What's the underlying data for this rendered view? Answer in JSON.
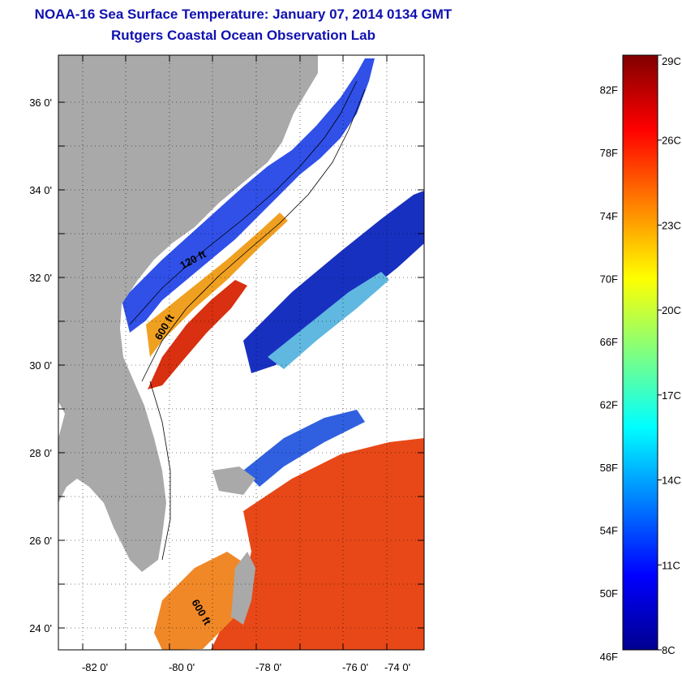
{
  "header": {
    "title": "NOAA-16 Sea Surface Temperature:  January 07, 2014 0134 GMT",
    "subtitle": "Rutgers Coastal Ocean Observation Lab"
  },
  "map": {
    "lon_ticks": [
      "-82 0'",
      "-80 0'",
      "-78 0'",
      "-76 0'",
      "-74 0'"
    ],
    "lat_ticks": [
      "36 0'",
      "34 0'",
      "32 0'",
      "30 0'",
      "28 0'",
      "26 0'",
      "24 0'"
    ],
    "contour_labels": [
      "120 ft",
      "600 ft",
      "600 ft"
    ],
    "land_color": "#a9a9a9",
    "gridlines": "dotted"
  },
  "colorbar": {
    "f_labels": [
      "82F",
      "78F",
      "74F",
      "70F",
      "66F",
      "62F",
      "58F",
      "54F",
      "50F",
      "46F"
    ],
    "c_labels": [
      "29C",
      "26C",
      "23C",
      "20C",
      "17C",
      "14C",
      "11C",
      "8C"
    ],
    "range_c": [
      8,
      29
    ],
    "colormap": "jet"
  }
}
